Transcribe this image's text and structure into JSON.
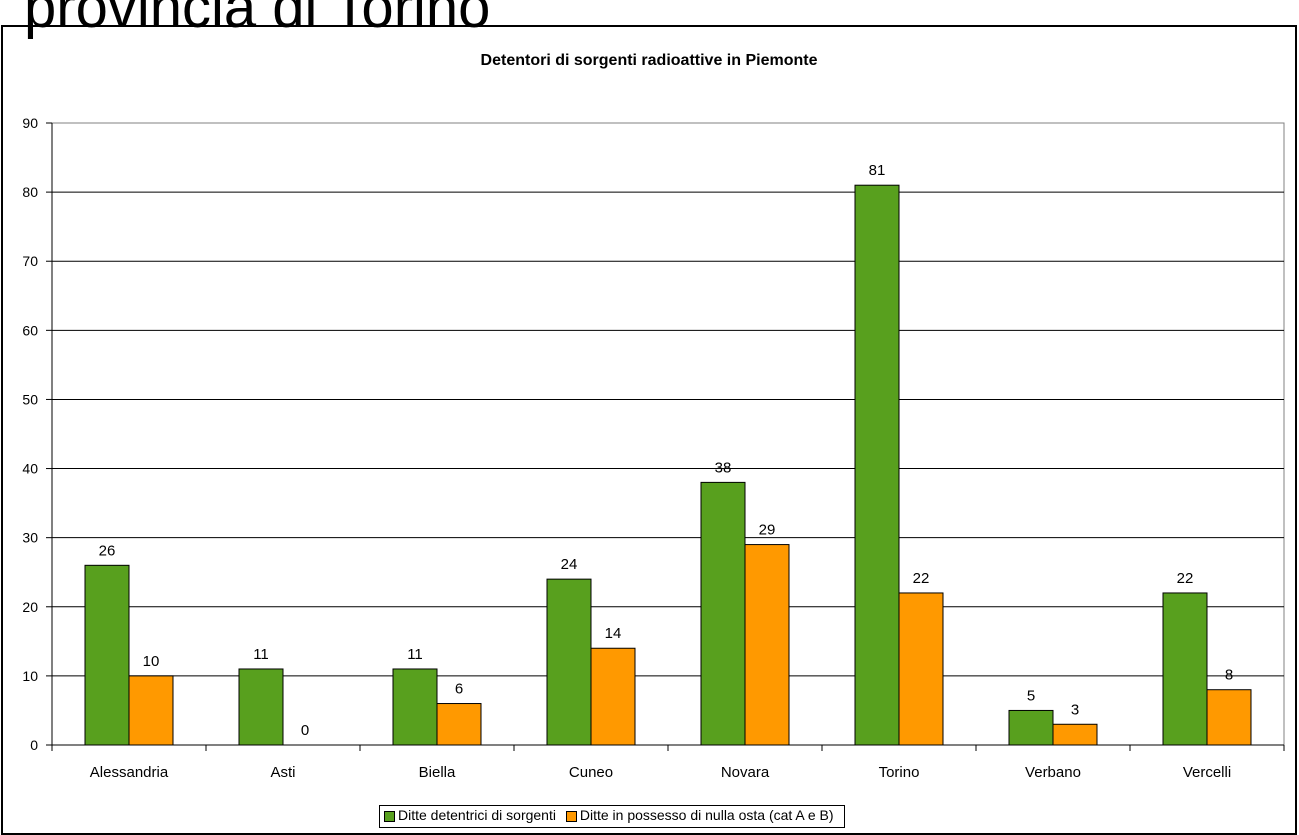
{
  "slide_title": "provincia di Torino",
  "chart_data": {
    "type": "bar",
    "title": "Detentori di sorgenti radioattive in Piemonte",
    "xlabel": "",
    "ylabel": "",
    "categories": [
      "Alessandria",
      "Asti",
      "Biella",
      "Cuneo",
      "Novara",
      "Torino",
      "Verbano",
      "Vercelli"
    ],
    "series": [
      {
        "name": "Ditte detentrici di sorgenti",
        "color": "#58a01e",
        "values": [
          26,
          11,
          11,
          24,
          38,
          81,
          5,
          22
        ]
      },
      {
        "name": "Ditte in possesso di nulla osta (cat A e B)",
        "color": "#ff9900",
        "values": [
          10,
          0,
          6,
          14,
          29,
          22,
          3,
          8
        ]
      }
    ],
    "ylim": [
      0,
      90
    ],
    "yticks": [
      "0",
      "10",
      "20",
      "30",
      "40",
      "50",
      "60",
      "70",
      "80",
      "90"
    ],
    "grid": true,
    "legend_position": "bottom",
    "data_labels": true
  }
}
